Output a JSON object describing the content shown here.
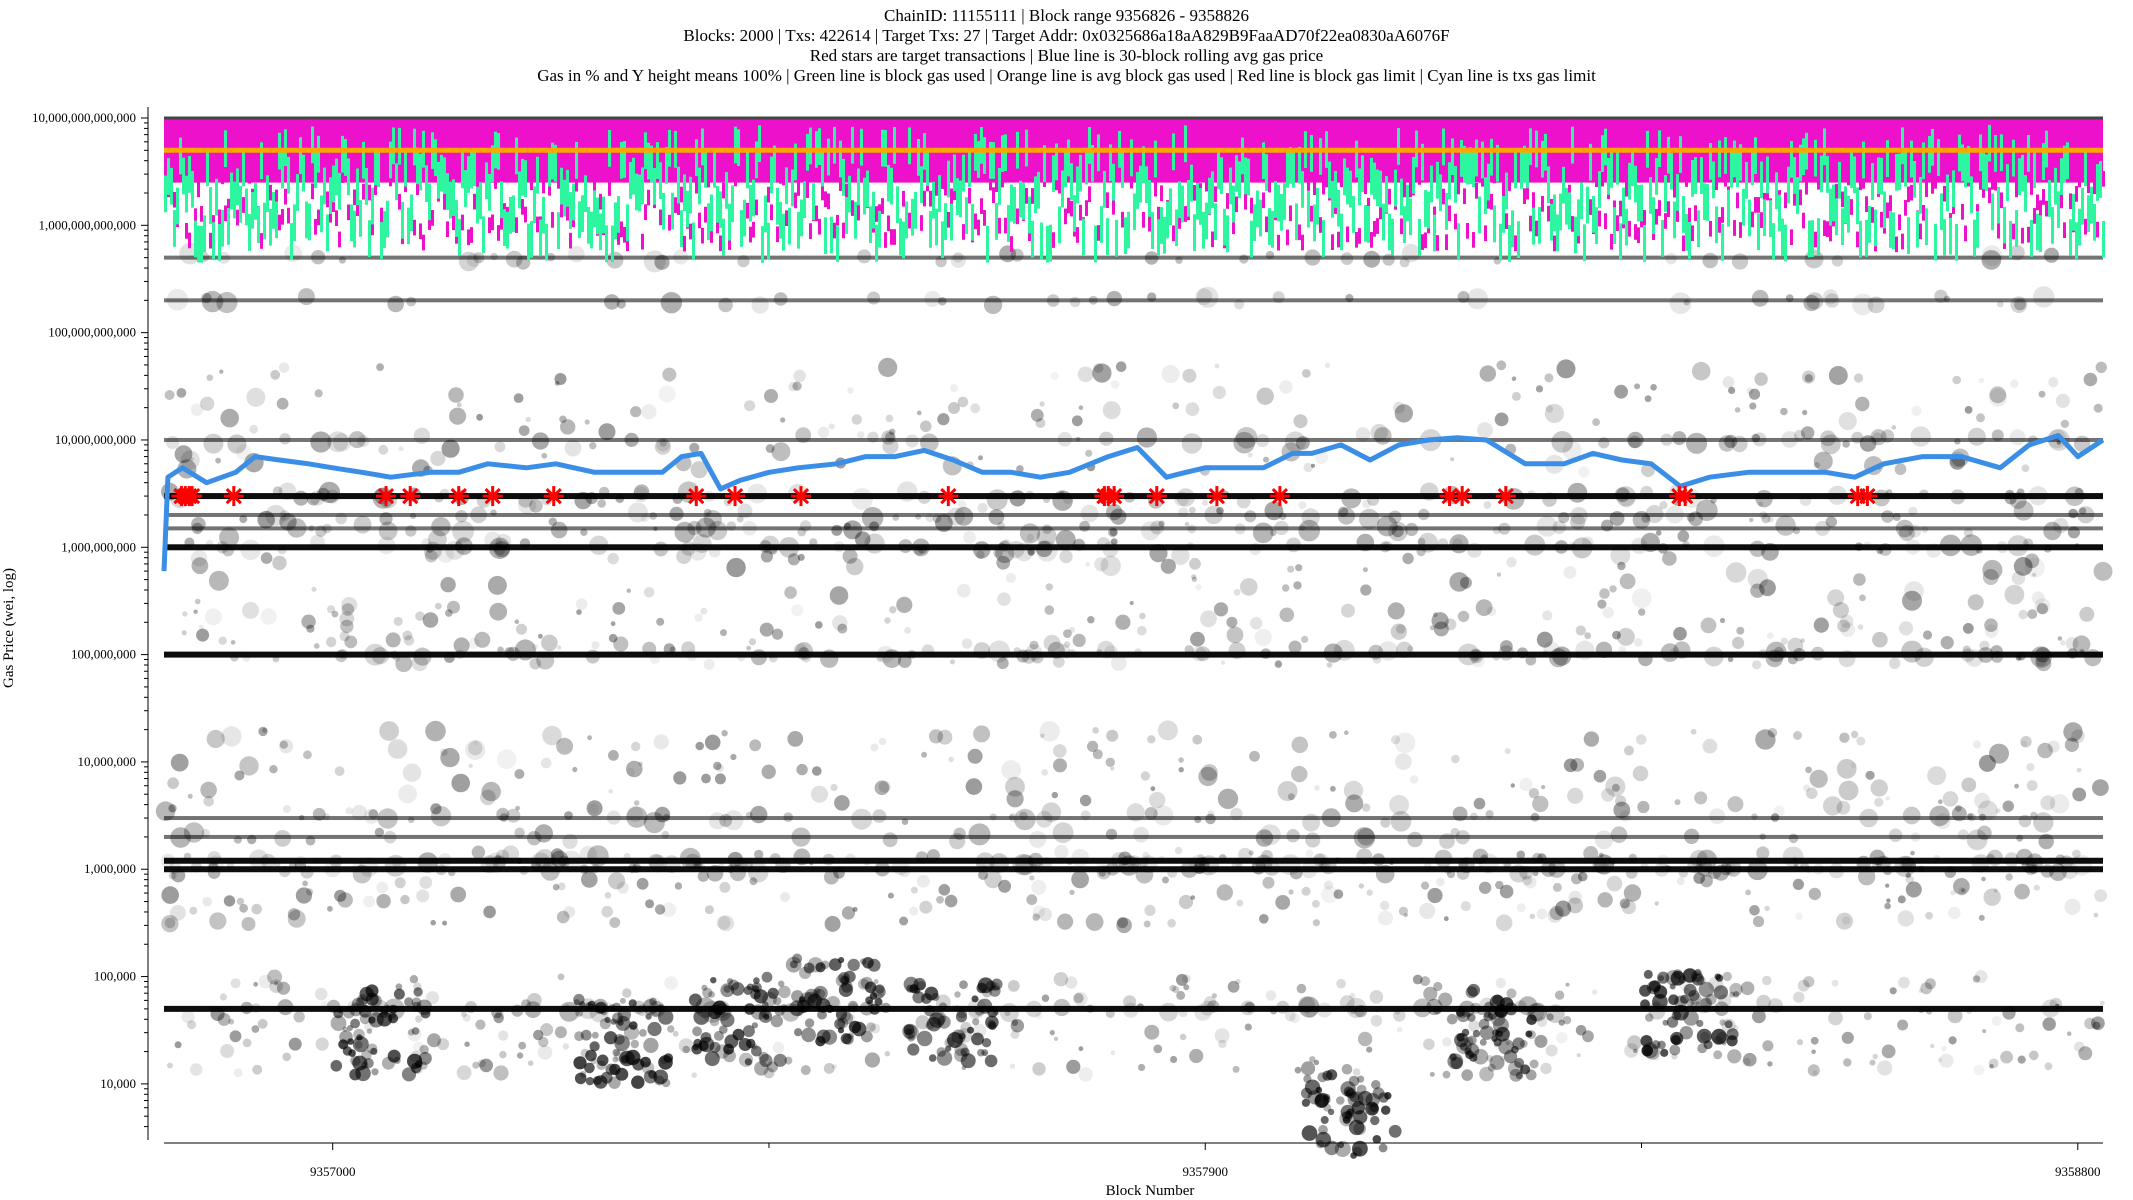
{
  "chart_data": {
    "type": "scatter",
    "title_lines": [
      "ChainID: 11155111 | Block range 9356826 - 9358826",
      "Blocks: 2000 | Txs: 422614 | Target Txs: 27 | Target Addr: 0x0325686a18aA829B9FaaAD70f22ea0830aA6076F",
      "Red stars are target transactions | Blue line is 30-block rolling avg gas price",
      "Gas in % and Y height means 100% | Green line is block gas used | Orange line is avg block gas used | Red line is block gas limit | Cyan line is txs gas limit"
    ],
    "xlabel": "Block Number",
    "ylabel": "Gas Price (wei, log)",
    "x_range": [
      9356826,
      9358826
    ],
    "y_scale": "log",
    "y_range": [
      3000,
      10000000000000
    ],
    "x_ticks": [
      {
        "value": 9357000,
        "label": "9357000"
      },
      {
        "value": 9357900,
        "label": "9357900"
      },
      {
        "value": 9358800,
        "label": "9358800"
      }
    ],
    "y_ticks": [
      {
        "value": 10000,
        "label": "10,000"
      },
      {
        "value": 100000,
        "label": "100,000"
      },
      {
        "value": 1000000,
        "label": "1,000,000"
      },
      {
        "value": 10000000,
        "label": "10,000,000"
      },
      {
        "value": 100000000,
        "label": "100,000,000"
      },
      {
        "value": 1000000000,
        "label": "1,000,000,000"
      },
      {
        "value": 10000000000,
        "label": "10,000,000,000"
      },
      {
        "value": 100000000000,
        "label": "100,000,000,000"
      },
      {
        "value": 1000000000000,
        "label": "1,000,000,000,000"
      },
      {
        "value": 10000000000000,
        "label": "10,000,000,000,000"
      }
    ],
    "grid": false,
    "series": [
      {
        "name": "target transactions",
        "marker": "star",
        "color": "#ff0000",
        "x": [
          9356844,
          9356848,
          9356852,
          9356855,
          9356898,
          9357055,
          9357080,
          9357130,
          9357165,
          9357228,
          9357375,
          9357415,
          9357483,
          9357635,
          9357796,
          9357800,
          9357806,
          9357850,
          9357912,
          9357977,
          9358152,
          9358165,
          9358210,
          9358389,
          9358395,
          9358573,
          9358583
        ],
        "y": [
          3000000000,
          3000000000,
          3000000000,
          3000000000,
          3000000000,
          3000000000,
          3000000000,
          3000000000,
          3000000000,
          3000000000,
          3000000000,
          3000000000,
          3000000000,
          3000000000,
          3000000000,
          3000000000,
          3000000000,
          3000000000,
          3000000000,
          3000000000,
          3000000000,
          3000000000,
          3000000000,
          3000000000,
          3000000000,
          3000000000,
          3000000000
        ]
      },
      {
        "name": "30-block rolling avg gas price",
        "marker": "line",
        "color": "#3a8ee6",
        "x": [
          9356826,
          9356830,
          9356845,
          9356870,
          9356900,
          9356920,
          9356945,
          9356975,
          9357000,
          9357030,
          9357060,
          9357100,
          9357130,
          9357160,
          9357200,
          9357230,
          9357270,
          9357310,
          9357340,
          9357360,
          9357380,
          9357400,
          9357420,
          9357450,
          9357480,
          9357520,
          9357550,
          9357580,
          9357610,
          9357640,
          9357670,
          9357700,
          9357730,
          9357760,
          9357800,
          9357830,
          9357860,
          9357880,
          9357900,
          9357930,
          9357960,
          9357990,
          9358010,
          9358040,
          9358070,
          9358100,
          9358130,
          9358160,
          9358190,
          9358230,
          9358270,
          9358300,
          9358330,
          9358360,
          9358390,
          9358420,
          9358460,
          9358500,
          9358540,
          9358570,
          9358600,
          9358640,
          9358680,
          9358720,
          9358750,
          9358780,
          9358800,
          9358826
        ],
        "y": [
          600000000,
          4500000000,
          5500000000,
          4000000000,
          5000000000,
          7000000000,
          6500000000,
          6000000000,
          5500000000,
          5000000000,
          4500000000,
          5000000000,
          5000000000,
          6000000000,
          5500000000,
          6000000000,
          5000000000,
          5000000000,
          5000000000,
          7000000000,
          7500000000,
          3500000000,
          4200000000,
          5000000000,
          5500000000,
          6000000000,
          7000000000,
          7000000000,
          8000000000,
          6500000000,
          5000000000,
          5000000000,
          4500000000,
          5000000000,
          7000000000,
          8500000000,
          4500000000,
          5000000000,
          5500000000,
          5500000000,
          5500000000,
          7500000000,
          7500000000,
          9000000000,
          6500000000,
          9000000000,
          10000000000,
          10500000000,
          10000000000,
          6000000000,
          6000000000,
          7500000000,
          6500000000,
          6000000000,
          3700000000,
          4500000000,
          5000000000,
          5000000000,
          5000000000,
          4500000000,
          6000000000,
          7000000000,
          7000000000,
          5500000000,
          9000000000,
          11000000000,
          7000000000,
          10000000000
        ]
      },
      {
        "name": "block gas used",
        "marker": "line",
        "color": "#2ef5a0",
        "x": [
          9356826,
          9356826
        ],
        "y": [
          2000000000000,
          2000000000000
        ]
      },
      {
        "name": "avg block gas used",
        "marker": "line",
        "color": "#ffa500",
        "x": [
          9356826,
          9358826
        ],
        "y": [
          5000000000000,
          5000000000000
        ]
      },
      {
        "name": "block gas limit",
        "marker": "line",
        "color": "#ff0000",
        "x": [
          9356826,
          9358826
        ],
        "y": [
          10000000000000,
          10000000000000
        ]
      },
      {
        "name": "txs gas limit",
        "marker": "bar",
        "color": "#ee11cc",
        "x": [
          9356826,
          9358826
        ],
        "y": [
          2500000000000,
          2500000000000
        ]
      },
      {
        "name": "transaction gas prices",
        "marker": "circle",
        "color": "#000000",
        "bands": [
          50000,
          1000000,
          1200000,
          2000000,
          3000000,
          100000000,
          1000000000,
          1500000000,
          2000000000,
          3000000000,
          10000000000,
          200000000000,
          500000000000
        ]
      }
    ]
  }
}
